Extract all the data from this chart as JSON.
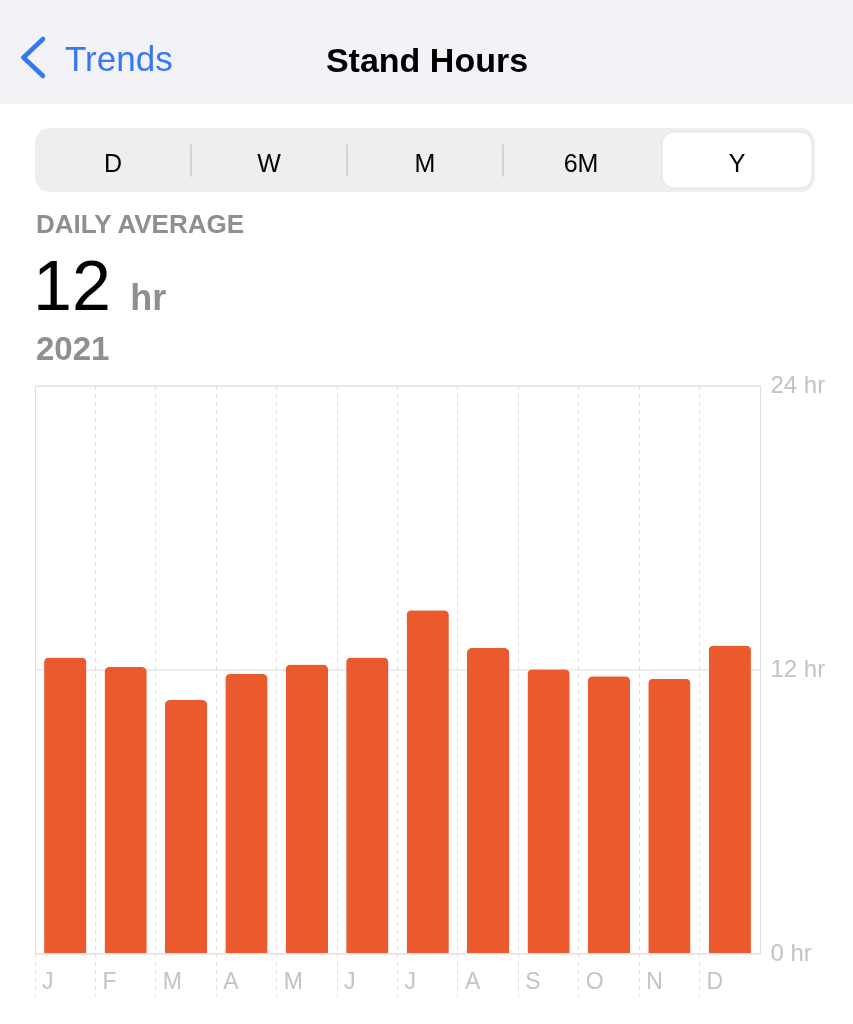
{
  "chart_data": {
    "type": "bar",
    "title": "Stand Hours",
    "subtitle": "DAILY AVERAGE",
    "annotations": [
      "Trends",
      "D",
      "W",
      "M",
      "6M",
      "Y",
      "12 hr",
      "2021"
    ],
    "categories": [
      "J",
      "F",
      "M",
      "A",
      "M",
      "J",
      "J",
      "A",
      "S",
      "O",
      "N",
      "D"
    ],
    "values": [
      12.5,
      12.1,
      10.7,
      11.8,
      12.2,
      12.5,
      14.5,
      12.9,
      12.0,
      11.7,
      11.6,
      13.0
    ],
    "color": "#ea5a2d",
    "ylim": [
      0,
      24
    ],
    "yticks": [
      {
        "value": 0,
        "label": "0 hr"
      },
      {
        "value": 12,
        "label": "12 hr"
      },
      {
        "value": 24,
        "label": "24 hr"
      }
    ],
    "grid": true
  }
}
